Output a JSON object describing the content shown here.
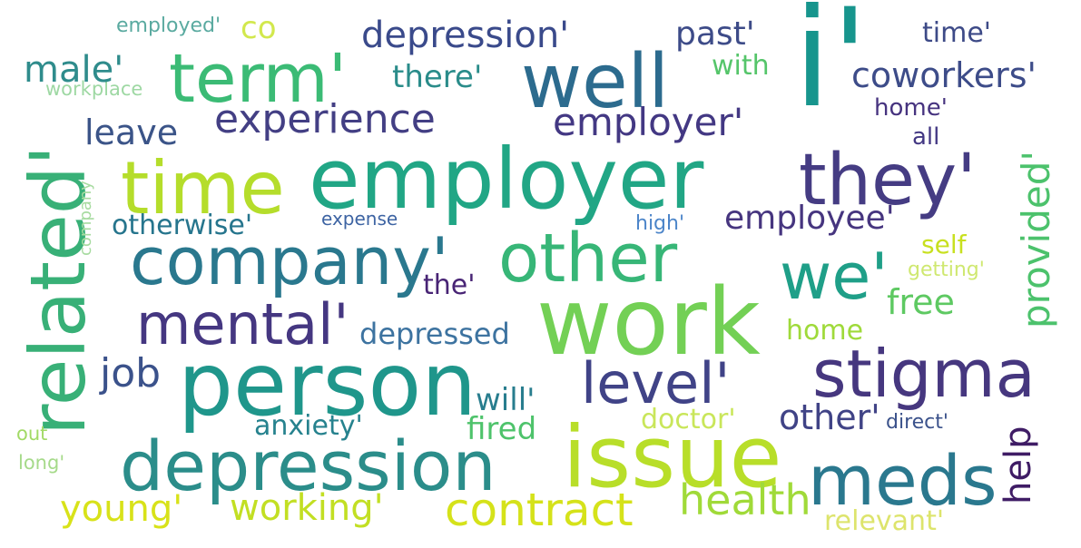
{
  "words": [
    {
      "text": "employed'",
      "color": "#5aaaa0"
    },
    {
      "text": "workplace",
      "color": "#9ed8a3"
    },
    {
      "text": "co",
      "color": "#d2e84d"
    },
    {
      "text": "depression'",
      "color": "#3a4a8b"
    },
    {
      "text": "past'",
      "color": "#3d4b88"
    },
    {
      "text": "i'",
      "color": "#17958d"
    },
    {
      "text": "time'",
      "color": "#3d4a87"
    },
    {
      "text": "male'",
      "color": "#2f8c8c"
    },
    {
      "text": "term'",
      "color": "#3bbb75"
    },
    {
      "text": "well",
      "color": "#2c6b8e"
    },
    {
      "text": "there'",
      "color": "#2a8c8a"
    },
    {
      "text": "with",
      "color": "#55c56a"
    },
    {
      "text": "coworkers'",
      "color": "#3d4c89"
    },
    {
      "text": "home'",
      "color": "#46337f"
    },
    {
      "text": "related'",
      "color": "#38b077"
    },
    {
      "text": "leave",
      "color": "#3b5488"
    },
    {
      "text": "experience",
      "color": "#433f84"
    },
    {
      "text": "employer'",
      "color": "#433883"
    },
    {
      "text": "all",
      "color": "#433883"
    },
    {
      "text": "provided'",
      "color": "#4cc26c"
    },
    {
      "text": "time",
      "color": "#b5dd2b"
    },
    {
      "text": "employer",
      "color": "#21a685"
    },
    {
      "text": "they'",
      "color": "#453c83"
    },
    {
      "text": "company",
      "color": "#a7dba0"
    },
    {
      "text": "otherwise'",
      "color": "#26758d"
    },
    {
      "text": "expense",
      "color": "#3e64a3"
    },
    {
      "text": "high'",
      "color": "#4c85c9"
    },
    {
      "text": "employee'",
      "color": "#46357f"
    },
    {
      "text": "company'",
      "color": "#2a788e"
    },
    {
      "text": "other",
      "color": "#37b677"
    },
    {
      "text": "self",
      "color": "#c8e020"
    },
    {
      "text": "getting'",
      "color": "#cfe870"
    },
    {
      "text": "we'",
      "color": "#1f9f88"
    },
    {
      "text": "the'",
      "color": "#482475"
    },
    {
      "text": "free",
      "color": "#5ec962"
    },
    {
      "text": "mental'",
      "color": "#453781"
    },
    {
      "text": "work",
      "color": "#73d055"
    },
    {
      "text": "depressed",
      "color": "#3d73a0"
    },
    {
      "text": "home",
      "color": "#9fda3a"
    },
    {
      "text": "job",
      "color": "#3b528b"
    },
    {
      "text": "person",
      "color": "#1f968b"
    },
    {
      "text": "level'",
      "color": "#404387"
    },
    {
      "text": "stigma",
      "color": "#46377f"
    },
    {
      "text": "will'",
      "color": "#287d8e"
    },
    {
      "text": "other'",
      "color": "#404386"
    },
    {
      "text": "direct'",
      "color": "#3b528b"
    },
    {
      "text": "anxiety'",
      "color": "#26828e"
    },
    {
      "text": "fired",
      "color": "#4ec36b"
    },
    {
      "text": "doctor'",
      "color": "#c9e65a"
    },
    {
      "text": "help",
      "color": "#3f1c65"
    },
    {
      "text": "out",
      "color": "#a2da66"
    },
    {
      "text": "long'",
      "color": "#a6da8a"
    },
    {
      "text": "depression",
      "color": "#2b8d8a"
    },
    {
      "text": "issue",
      "color": "#b8de29"
    },
    {
      "text": "meds",
      "color": "#2a788e"
    },
    {
      "text": "young'",
      "color": "#d8e219"
    },
    {
      "text": "working'",
      "color": "#c2df23"
    },
    {
      "text": "contract",
      "color": "#d5e21a"
    },
    {
      "text": "health",
      "color": "#a0da39"
    },
    {
      "text": "relevant'",
      "color": "#dde46c"
    }
  ]
}
